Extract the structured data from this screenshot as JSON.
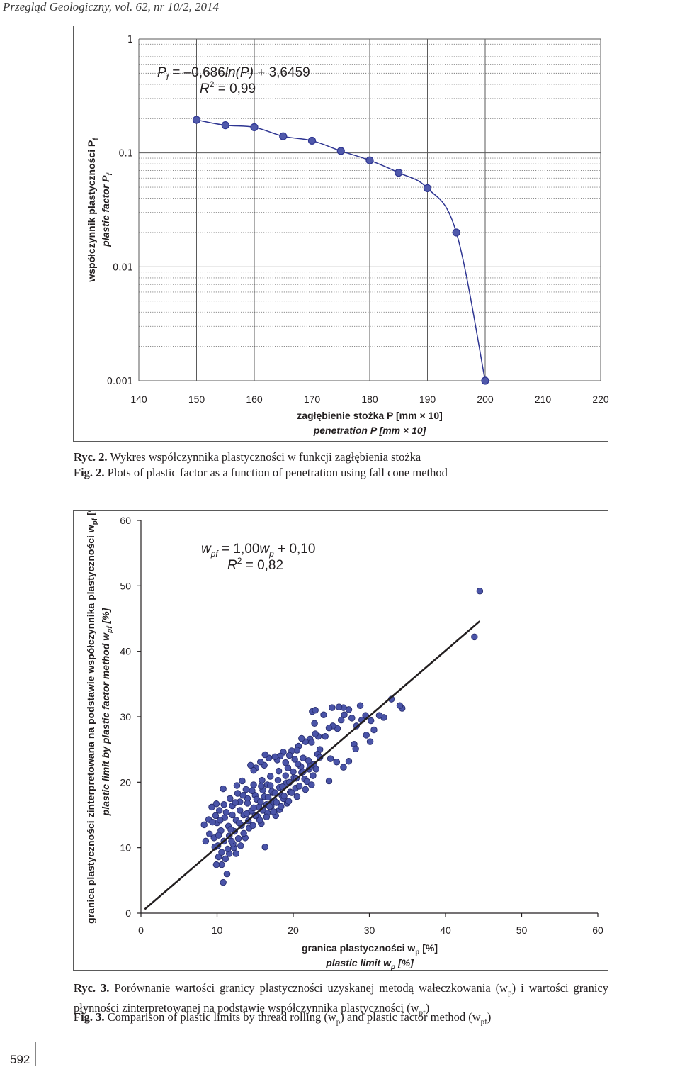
{
  "page": {
    "header": "Przegląd Geologiczny, vol. 62, nr 10/2, 2014",
    "page_number": "592"
  },
  "figure2": {
    "caption_pl_lead": "Ryc. 2.",
    "caption_pl": "Wykres współczynnika plastyczności w funkcji zagłębienia stożka",
    "caption_en_lead": "Fig. 2.",
    "caption_en": "Plots of plastic factor as a function of penetration using fall cone method"
  },
  "figure3": {
    "caption_pl_lead": "Ryc. 3.",
    "caption_pl_1": "Porównanie wartości granicy plastyczności uzyskanej metodą wałeczkowania (w",
    "caption_pl_sub1": "p",
    "caption_pl_2": ") i wartości granicy płynności zinterpretowanej na podstawie współczynnika plastyczności (w",
    "caption_pl_sub2": "pf",
    "caption_pl_3": ")",
    "caption_en_lead": "Fig. 3.",
    "caption_en_1": "Comparison of plastic limits by thread rolling (w",
    "caption_en_sub1": "p",
    "caption_en_2": ") and plastic factor method (w",
    "caption_en_sub2": "pf",
    "caption_en_3": ")"
  },
  "chart_data": [
    {
      "type": "line",
      "scale_y": "log",
      "grid": true,
      "x": [
        150,
        155,
        160,
        165,
        170,
        175,
        180,
        185,
        190,
        195,
        200
      ],
      "series": [
        {
          "values": [
            0.195,
            0.175,
            0.168,
            0.14,
            0.128,
            0.104,
            0.086,
            0.067,
            0.049,
            0.02,
            0.001
          ],
          "color": "#2e3592",
          "marker_fill": "#5059ab"
        }
      ],
      "xlim": [
        140,
        220
      ],
      "ylim": [
        0.001,
        1
      ],
      "x_ticks": [
        "140",
        "150",
        "160",
        "170",
        "180",
        "190",
        "200",
        "210",
        "220"
      ],
      "y_ticks": [
        "1",
        "0.1",
        "0.01",
        "0.001"
      ],
      "xlabel_pl": "zagłębienie stożka P [mm × 10]",
      "xlabel_en": "penetration P [mm × 10]",
      "ylabel_pl": "współczynnik plastyczności P",
      "ylabel_pl_sub": "f",
      "ylabel_en": "plastic factor P",
      "ylabel_en_sub": "f",
      "annotation": {
        "eq_P": "P",
        "eq_sub": "f",
        "eq_rest_1": " = –0,686",
        "eq_ln": "ln(P)",
        "eq_rest_2": " + 3,6459",
        "r2_R": "R",
        "r2_sup": "2",
        "r2_rest": " = 0,99"
      }
    },
    {
      "type": "scatter",
      "grid": false,
      "xlim": [
        0,
        60
      ],
      "ylim": [
        0,
        60
      ],
      "x_ticks": [
        "0",
        "10",
        "20",
        "30",
        "40",
        "50",
        "60"
      ],
      "y_ticks": [
        "0",
        "10",
        "20",
        "30",
        "40",
        "50",
        "60"
      ],
      "xlabel_pl": "granica plastyczności w",
      "xlabel_pl_sub": "p",
      "xlabel_pl_unit": " [%]",
      "xlabel_en": "plastic limit w",
      "xlabel_en_sub": "p",
      "xlabel_en_unit": " [%]",
      "ylabel_pl": "granica plastyczności zinterpretowana na podstawie współczynnika plastyczności w",
      "ylabel_pl_sub": "pf",
      "ylabel_pl_unit": " [%]",
      "ylabel_en": "plastic limit by plastic factor method w",
      "ylabel_en_sub": "pf",
      "ylabel_en_unit": " [%]",
      "marker_color": "#4a54a8",
      "marker_edge": "#272d6e",
      "regression": {
        "slope": 1.0,
        "intercept": 0.1,
        "x_range": [
          0.5,
          44.5
        ],
        "color": "#231f20"
      },
      "annotation": {
        "eq_w": "w",
        "eq_sub1": "pf",
        "eq_mid": " = 1,00",
        "eq_w2": "w",
        "eq_sub2": "p",
        "eq_rest": " + 0,10",
        "r2_R": "R",
        "r2_sup": "2",
        "r2_rest": " = 0,82"
      },
      "points": [
        [
          44.5,
          49.2
        ],
        [
          43.8,
          42.2
        ],
        [
          34.3,
          31.3
        ],
        [
          34.0,
          31.7
        ],
        [
          32.9,
          32.7
        ],
        [
          31.9,
          29.9
        ],
        [
          31.3,
          30.2
        ],
        [
          30.2,
          29.4
        ],
        [
          30.6,
          28.0
        ],
        [
          30.1,
          26.2
        ],
        [
          29.6,
          27.2
        ],
        [
          29.5,
          30.2
        ],
        [
          29.0,
          29.5
        ],
        [
          28.8,
          31.7
        ],
        [
          28.3,
          28.6
        ],
        [
          27.7,
          29.8
        ],
        [
          27.3,
          31.1
        ],
        [
          26.7,
          30.3
        ],
        [
          26.6,
          31.4
        ],
        [
          26.3,
          29.5
        ],
        [
          26.0,
          31.5
        ],
        [
          25.8,
          28.2
        ],
        [
          25.2,
          28.6
        ],
        [
          25.1,
          31.4
        ],
        [
          24.7,
          28.3
        ],
        [
          24.2,
          27.0
        ],
        [
          24.0,
          30.3
        ],
        [
          23.5,
          25.0
        ],
        [
          23.3,
          27.0
        ],
        [
          22.8,
          29.0
        ],
        [
          22.5,
          30.8
        ],
        [
          22.9,
          31.0
        ],
        [
          22.7,
          22.7
        ],
        [
          28.0,
          25.8
        ],
        [
          28.2,
          25.1
        ],
        [
          27.3,
          23.2
        ],
        [
          26.6,
          22.3
        ],
        [
          25.7,
          23.1
        ],
        [
          24.9,
          23.6
        ],
        [
          24.7,
          20.2
        ],
        [
          22.9,
          27.4
        ],
        [
          22.2,
          26.6
        ],
        [
          22.4,
          26.1
        ],
        [
          21.6,
          26.2
        ],
        [
          21.1,
          26.7
        ],
        [
          23.2,
          24.3
        ],
        [
          20.7,
          25.5
        ],
        [
          20.5,
          24.9
        ],
        [
          19.8,
          24.8
        ],
        [
          19.5,
          24.1
        ],
        [
          18.7,
          24.6
        ],
        [
          18.3,
          24.0
        ],
        [
          17.9,
          23.4
        ],
        [
          17.6,
          23.9
        ],
        [
          16.8,
          23.7
        ],
        [
          16.3,
          24.2
        ],
        [
          16.2,
          22.6
        ],
        [
          15.7,
          23.1
        ],
        [
          15.1,
          22.2
        ],
        [
          14.4,
          22.6
        ],
        [
          14.8,
          21.8
        ],
        [
          16.6,
          19.6
        ],
        [
          17.3,
          18.4
        ],
        [
          19.2,
          16.8
        ],
        [
          18.7,
          17.5
        ],
        [
          18.2,
          15.8
        ],
        [
          17.7,
          14.9
        ],
        [
          17.1,
          16.4
        ],
        [
          16.6,
          15.3
        ],
        [
          15.8,
          13.7
        ],
        [
          15.3,
          14.8
        ],
        [
          14.2,
          13.0
        ],
        [
          13.7,
          11.5
        ],
        [
          13.1,
          10.3
        ],
        [
          12.5,
          9.1
        ],
        [
          12.2,
          10.0
        ],
        [
          11.6,
          9.1
        ],
        [
          11.1,
          8.3
        ],
        [
          10.6,
          7.4
        ],
        [
          10.2,
          8.6
        ],
        [
          9.9,
          7.4
        ],
        [
          10.8,
          4.7
        ],
        [
          11.3,
          6.0
        ],
        [
          16.3,
          10.1
        ],
        [
          10.8,
          19.0
        ],
        [
          9.3,
          16.2
        ],
        [
          8.9,
          14.3
        ],
        [
          8.3,
          13.5
        ],
        [
          9.0,
          12.1
        ],
        [
          9.7,
          10.1
        ],
        [
          8.5,
          11.0
        ],
        [
          12.0,
          15.0
        ],
        [
          13.0,
          17.0
        ],
        [
          14.0,
          17.5
        ],
        [
          15.0,
          18.0
        ],
        [
          16.0,
          18.8
        ],
        [
          17.0,
          19.5
        ],
        [
          18.0,
          20.3
        ],
        [
          19.0,
          21.0
        ],
        [
          20.0,
          21.6
        ],
        [
          21.0,
          22.4
        ],
        [
          22.0,
          23.3
        ],
        [
          23.5,
          23.8
        ],
        [
          21.5,
          20.5
        ],
        [
          20.3,
          19.1
        ],
        [
          19.6,
          18.5
        ],
        [
          18.5,
          18.0
        ],
        [
          17.5,
          17.2
        ],
        [
          16.5,
          16.6
        ],
        [
          15.5,
          16.2
        ],
        [
          14.5,
          15.6
        ],
        [
          13.5,
          15.0
        ],
        [
          12.5,
          14.2
        ],
        [
          11.5,
          13.3
        ],
        [
          10.5,
          12.6
        ],
        [
          9.6,
          11.5
        ],
        [
          10.0,
          13.8
        ],
        [
          11.0,
          14.6
        ],
        [
          12.0,
          16.4
        ],
        [
          13.0,
          15.7
        ],
        [
          14.0,
          16.8
        ],
        [
          15.2,
          17.4
        ],
        [
          16.2,
          17.8
        ],
        [
          17.2,
          18.6
        ],
        [
          18.2,
          19.2
        ],
        [
          19.1,
          19.9
        ],
        [
          20.1,
          20.7
        ],
        [
          21.1,
          21.5
        ],
        [
          22.1,
          22.0
        ],
        [
          20.6,
          22.8
        ],
        [
          19.3,
          22.2
        ],
        [
          18.1,
          21.7
        ],
        [
          17.0,
          20.9
        ],
        [
          15.9,
          20.3
        ],
        [
          14.8,
          19.6
        ],
        [
          13.8,
          18.9
        ],
        [
          12.7,
          18.3
        ],
        [
          11.7,
          17.5
        ],
        [
          10.9,
          16.6
        ],
        [
          10.3,
          15.7
        ],
        [
          9.8,
          14.9
        ],
        [
          9.4,
          13.9
        ],
        [
          10.2,
          11.9
        ],
        [
          10.9,
          11.0
        ],
        [
          11.6,
          11.8
        ],
        [
          12.3,
          12.5
        ],
        [
          13.2,
          13.4
        ],
        [
          14.1,
          14.1
        ],
        [
          15.0,
          14.9
        ],
        [
          16.0,
          15.7
        ],
        [
          16.9,
          16.3
        ],
        [
          17.8,
          16.9
        ],
        [
          18.8,
          17.9
        ],
        [
          19.8,
          18.4
        ],
        [
          20.8,
          19.4
        ],
        [
          21.8,
          20.1
        ],
        [
          22.6,
          21.0
        ],
        [
          23.0,
          22.0
        ],
        [
          21.3,
          23.7
        ],
        [
          20.2,
          23.5
        ],
        [
          19.0,
          23.0
        ],
        [
          12.8,
          11.4
        ],
        [
          12.1,
          10.6
        ],
        [
          11.4,
          9.8
        ],
        [
          10.6,
          9.3
        ],
        [
          10.1,
          10.3
        ],
        [
          11.8,
          12.8
        ],
        [
          12.9,
          13.8
        ],
        [
          13.9,
          15.2
        ],
        [
          14.8,
          16.1
        ],
        [
          15.7,
          17.0
        ],
        [
          16.7,
          17.7
        ],
        [
          17.6,
          18.4
        ],
        [
          18.6,
          19.3
        ],
        [
          19.5,
          20.0
        ],
        [
          20.4,
          20.6
        ],
        [
          21.3,
          21.6
        ],
        [
          22.2,
          22.4
        ],
        [
          10.4,
          14.2
        ],
        [
          11.2,
          15.4
        ],
        [
          12.4,
          16.9
        ],
        [
          13.4,
          18.0
        ],
        [
          14.6,
          18.7
        ],
        [
          15.8,
          19.4
        ],
        [
          11.9,
          11.0
        ],
        [
          13.5,
          12.2
        ],
        [
          14.7,
          13.4
        ],
        [
          15.6,
          14.2
        ],
        [
          16.5,
          14.7
        ],
        [
          17.4,
          15.5
        ],
        [
          18.4,
          16.3
        ],
        [
          19.4,
          17.1
        ],
        [
          20.5,
          17.8
        ],
        [
          21.6,
          18.9
        ],
        [
          22.4,
          19.6
        ],
        [
          12.6,
          19.5
        ],
        [
          13.3,
          20.2
        ],
        [
          9.9,
          16.7
        ]
      ]
    }
  ]
}
